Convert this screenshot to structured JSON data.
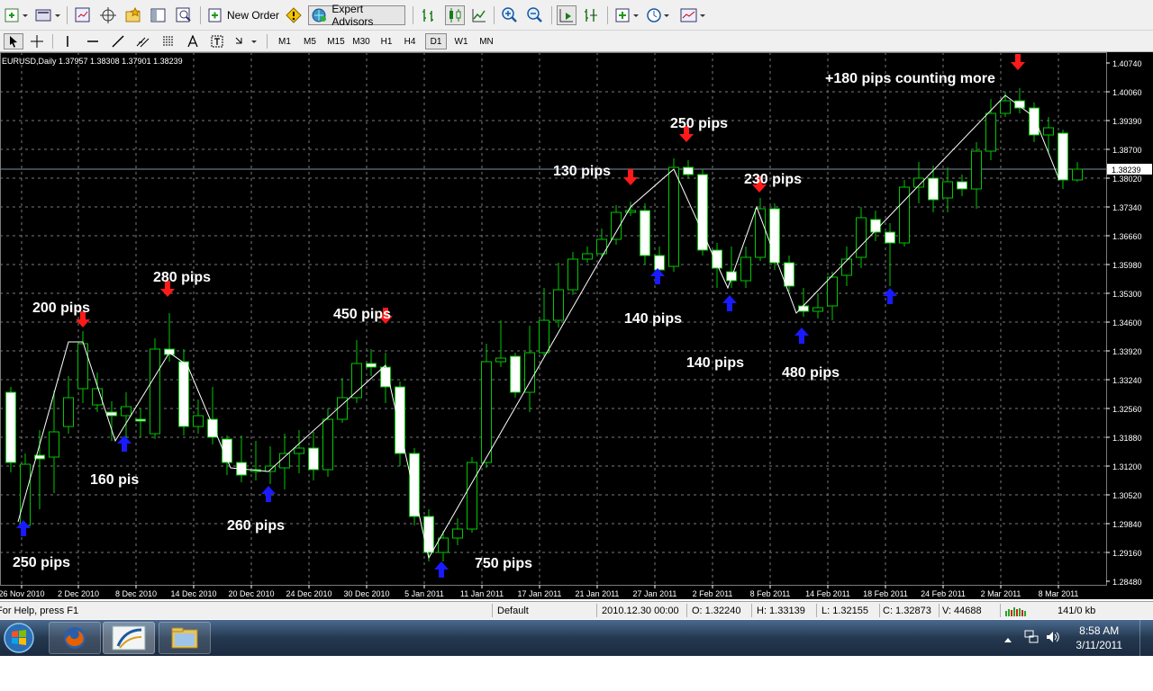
{
  "toolbar": {
    "new_order_label": "New Order",
    "expert_advisors_label": "Expert Advisors",
    "periods": [
      "M1",
      "M5",
      "M15",
      "M30",
      "H1",
      "H4",
      "D1",
      "W1",
      "MN"
    ],
    "active_period": "D1"
  },
  "chart": {
    "header": "EURUSD,Daily  1.37957 1.38308 1.37901 1.38239",
    "current_price_label": "1.38239",
    "price_labels": [
      "1.40740",
      "1.40060",
      "1.39390",
      "1.38700",
      "1.38020",
      "1.37340",
      "1.36660",
      "1.35980",
      "1.35300",
      "1.34600",
      "1.33920",
      "1.33240",
      "1.32560",
      "1.31880",
      "1.31200",
      "1.30520",
      "1.29840",
      "1.29160",
      "1.28480"
    ],
    "date_labels": [
      "26 Nov 2010",
      "2 Dec 2010",
      "8 Dec 2010",
      "14 Dec 2010",
      "20 Dec 2010",
      "24 Dec 2010",
      "30 Dec 2010",
      "5 Jan 2011",
      "11 Jan 2011",
      "17 Jan 2011",
      "21 Jan 2011",
      "27 Jan 2011",
      "2 Feb 2011",
      "8 Feb 2011",
      "14 Feb 2011",
      "18 Feb 2011",
      "24 Feb 2011",
      "2 Mar 2011",
      "8 Mar 2011"
    ],
    "annotations": [
      "250 pips",
      "200 pips",
      "160 pis",
      "280 pips",
      "260 pips",
      "450 pips",
      "750 pips",
      "130 pips",
      "140 pips",
      "250 pips",
      "140 pips",
      "230 pips",
      "480 pips",
      "+180 pips counting more"
    ],
    "colors": {
      "background": "#000000",
      "grid": "#7a7a7a",
      "candle": "#00c800",
      "buy_arrow": "#1a1aff",
      "sell_arrow": "#ff1a1a",
      "trend_line": "#ffffff",
      "text": "#ffffff"
    }
  },
  "status": {
    "help": "For Help, press F1",
    "profile": "Default",
    "datetime": "2010.12.30 00:00",
    "open": "O: 1.32240",
    "high": "H: 1.33139",
    "low": "L: 1.32155",
    "close": "C: 1.32873",
    "volume": "V: 44688",
    "traffic": "141/0 kb"
  },
  "taskbar": {
    "time": "8:58 AM",
    "date": "3/11/2011"
  }
}
